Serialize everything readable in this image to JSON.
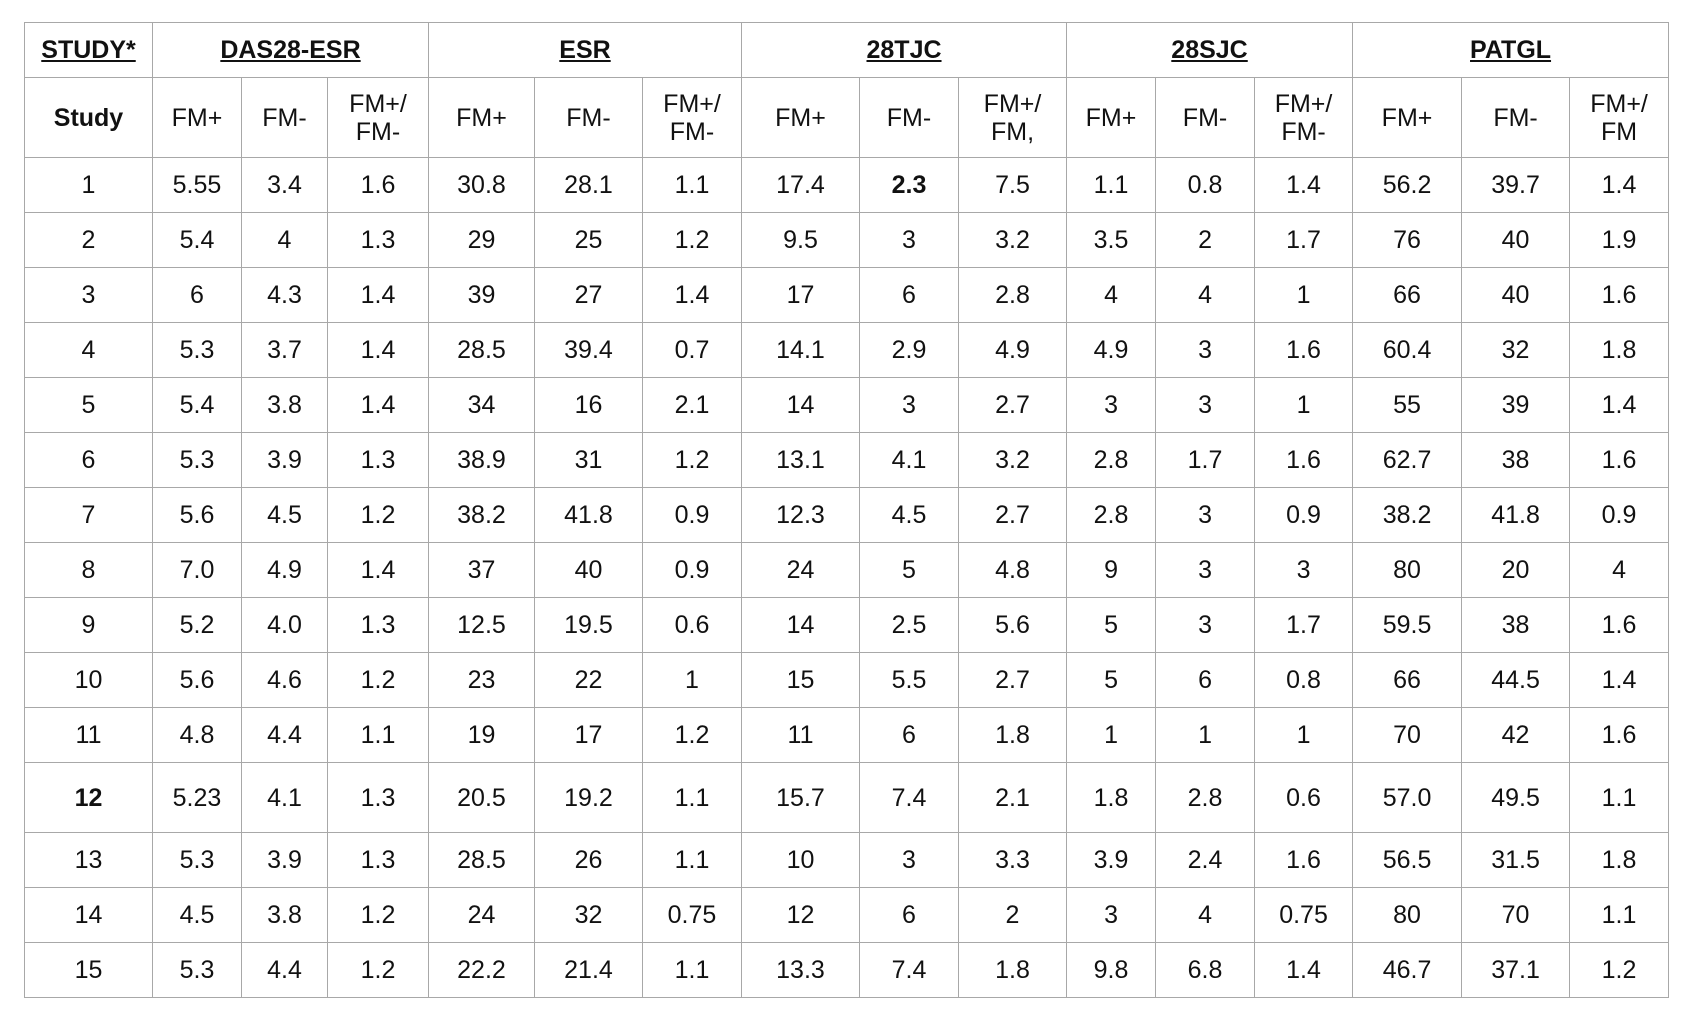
{
  "table": {
    "groups": [
      "STUDY*",
      "DAS28-ESR",
      "ESR",
      "28TJC",
      "28SJC",
      "PATGL"
    ],
    "subheaders": [
      "Study",
      "FM+",
      "FM-",
      "FM+/ FM-",
      "FM+",
      "FM-",
      "FM+/ FM-",
      "FM+",
      "FM-",
      "FM+/ FM,",
      "FM+",
      "FM-",
      "FM+/ FM-",
      "FM+",
      "FM-",
      "FM+/ FM"
    ],
    "rows": [
      [
        "1",
        "5.55",
        "3.4",
        "1.6",
        "30.8",
        "28.1",
        "1.1",
        "17.4",
        "2.3",
        "7.5",
        "1.1",
        "0.8",
        "1.4",
        "56.2",
        "39.7",
        "1.4"
      ],
      [
        "2",
        "5.4",
        "4",
        "1.3",
        "29",
        "25",
        "1.2",
        "9.5",
        "3",
        "3.2",
        "3.5",
        "2",
        "1.7",
        "76",
        "40",
        "1.9"
      ],
      [
        "3",
        "6",
        "4.3",
        "1.4",
        "39",
        "27",
        "1.4",
        "17",
        "6",
        "2.8",
        "4",
        "4",
        "1",
        "66",
        "40",
        "1.6"
      ],
      [
        "4",
        "5.3",
        "3.7",
        "1.4",
        "28.5",
        "39.4",
        "0.7",
        "14.1",
        "2.9",
        "4.9",
        "4.9",
        "3",
        "1.6",
        "60.4",
        "32",
        "1.8"
      ],
      [
        "5",
        "5.4",
        "3.8",
        "1.4",
        "34",
        "16",
        "2.1",
        "14",
        "3",
        "2.7",
        "3",
        "3",
        "1",
        "55",
        "39",
        "1.4"
      ],
      [
        "6",
        "5.3",
        "3.9",
        "1.3",
        "38.9",
        "31",
        "1.2",
        "13.1",
        "4.1",
        "3.2",
        "2.8",
        "1.7",
        "1.6",
        "62.7",
        "38",
        "1.6"
      ],
      [
        "7",
        "5.6",
        "4.5",
        "1.2",
        "38.2",
        "41.8",
        "0.9",
        "12.3",
        "4.5",
        "2.7",
        "2.8",
        "3",
        "0.9",
        "38.2",
        "41.8",
        "0.9"
      ],
      [
        "8",
        "7.0",
        "4.9",
        "1.4",
        "37",
        "40",
        "0.9",
        "24",
        "5",
        "4.8",
        "9",
        "3",
        "3",
        "80",
        "20",
        "4"
      ],
      [
        "9",
        "5.2",
        "4.0",
        "1.3",
        "12.5",
        "19.5",
        "0.6",
        "14",
        "2.5",
        "5.6",
        "5",
        "3",
        "1.7",
        "59.5",
        "38",
        "1.6"
      ],
      [
        "10",
        "5.6",
        "4.6",
        "1.2",
        "23",
        "22",
        "1",
        "15",
        "5.5",
        "2.7",
        "5",
        "6",
        "0.8",
        "66",
        "44.5",
        "1.4"
      ],
      [
        "11",
        "4.8",
        "4.4",
        "1.1",
        "19",
        "17",
        "1.2",
        "11",
        "6",
        "1.8",
        "1",
        "1",
        "1",
        "70",
        "42",
        "1.6"
      ],
      [
        "12",
        "5.23",
        "4.1",
        "1.3",
        "20.5",
        "19.2",
        "1.1",
        "15.7",
        "7.4",
        "2.1",
        "1.8",
        "2.8",
        "0.6",
        "57.0",
        "49.5",
        "1.1"
      ],
      [
        "13",
        "5.3",
        "3.9",
        "1.3",
        "28.5",
        "26",
        "1.1",
        "10",
        "3",
        "3.3",
        "3.9",
        "2.4",
        "1.6",
        "56.5",
        "31.5",
        "1.8"
      ],
      [
        "14",
        "4.5",
        "3.8",
        "1.2",
        "24",
        "32",
        "0.75",
        "12",
        "6",
        "2",
        "3",
        "4",
        "0.75",
        "80",
        "70",
        "1.1"
      ],
      [
        "15",
        "5.3",
        "4.4",
        "1.2",
        "22.2",
        "21.4",
        "1.1",
        "13.3",
        "7.4",
        "1.8",
        "9.8",
        "6.8",
        "1.4",
        "46.7",
        "37.1",
        "1.2"
      ]
    ]
  }
}
